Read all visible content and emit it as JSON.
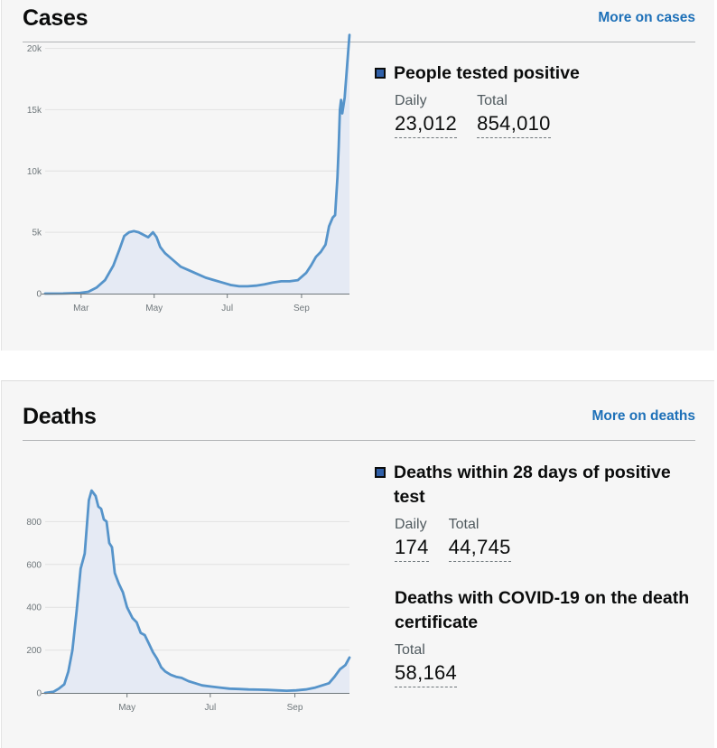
{
  "cases": {
    "title": "Cases",
    "more_link": "More on cases",
    "metric": {
      "label": "People tested positive",
      "daily_label": "Daily",
      "daily_value": "23,012",
      "total_label": "Total",
      "total_value": "854,010"
    }
  },
  "deaths": {
    "title": "Deaths",
    "more_link": "More on deaths",
    "metric1": {
      "label": "Deaths within 28 days of positive test",
      "daily_label": "Daily",
      "daily_value": "174",
      "total_label": "Total",
      "total_value": "44,745"
    },
    "metric2": {
      "label": "Deaths with COVID-19 on the death certificate",
      "total_label": "Total",
      "total_value": "58,164"
    }
  },
  "colors": {
    "line": "#5694ca",
    "fill": "#e5eaf4",
    "accent": "#1d70b8"
  },
  "chart_data": [
    {
      "type": "area",
      "title": "",
      "xlabel": "",
      "ylabel": "",
      "x_ticks": [
        "Mar",
        "May",
        "Jul",
        "Sep"
      ],
      "y_ticks": [
        "0",
        "5k",
        "10k",
        "15k",
        "20k"
      ],
      "ylim": [
        0,
        21000
      ],
      "xlim": [
        "2020-01-31",
        "2020-10-11"
      ],
      "grid": true,
      "series": [
        {
          "x": [
            "2020-01-31",
            "2020-02-15",
            "2020-02-29",
            "2020-03-07",
            "2020-03-14",
            "2020-03-21",
            "2020-03-28",
            "2020-04-02",
            "2020-04-06",
            "2020-04-10",
            "2020-04-14",
            "2020-04-18",
            "2020-04-22",
            "2020-04-26",
            "2020-04-30",
            "2020-05-03",
            "2020-05-06",
            "2020-05-10",
            "2020-05-16",
            "2020-05-23",
            "2020-05-30",
            "2020-06-06",
            "2020-06-13",
            "2020-06-20",
            "2020-06-27",
            "2020-07-04",
            "2020-07-11",
            "2020-07-18",
            "2020-07-25",
            "2020-08-01",
            "2020-08-08",
            "2020-08-15",
            "2020-08-22",
            "2020-08-29",
            "2020-09-05",
            "2020-09-09",
            "2020-09-13",
            "2020-09-17",
            "2020-09-21",
            "2020-09-24",
            "2020-09-27",
            "2020-09-29",
            "2020-10-01",
            "2020-10-02",
            "2020-10-03",
            "2020-10-04",
            "2020-10-05",
            "2020-10-07",
            "2020-10-09",
            "2020-10-11"
          ],
          "values": [
            0,
            10,
            50,
            150,
            500,
            1100,
            2300,
            3600,
            4700,
            5000,
            5100,
            5000,
            4800,
            4600,
            5000,
            4600,
            3800,
            3300,
            2800,
            2200,
            1900,
            1600,
            1300,
            1100,
            900,
            700,
            600,
            600,
            650,
            750,
            900,
            1000,
            1000,
            1100,
            1700,
            2300,
            3000,
            3400,
            4000,
            5500,
            6200,
            6400,
            9500,
            12000,
            15000,
            15800,
            14700,
            16000,
            18500,
            21100
          ]
        }
      ]
    },
    {
      "type": "area",
      "title": "",
      "xlabel": "",
      "ylabel": "",
      "x_ticks": [
        "May",
        "Jul",
        "Sep"
      ],
      "y_ticks": [
        "0",
        "200",
        "400",
        "600",
        "800"
      ],
      "ylim": [
        0,
        1000
      ],
      "xlim": [
        "2020-03-02",
        "2020-10-11"
      ],
      "grid": true,
      "series": [
        {
          "x": [
            "2020-03-02",
            "2020-03-08",
            "2020-03-12",
            "2020-03-16",
            "2020-03-19",
            "2020-03-22",
            "2020-03-25",
            "2020-03-28",
            "2020-03-31",
            "2020-04-03",
            "2020-04-05",
            "2020-04-08",
            "2020-04-10",
            "2020-04-12",
            "2020-04-14",
            "2020-04-16",
            "2020-04-18",
            "2020-04-20",
            "2020-04-22",
            "2020-04-25",
            "2020-04-28",
            "2020-05-01",
            "2020-05-05",
            "2020-05-08",
            "2020-05-11",
            "2020-05-14",
            "2020-05-17",
            "2020-05-20",
            "2020-05-23",
            "2020-05-26",
            "2020-05-29",
            "2020-06-02",
            "2020-06-06",
            "2020-06-10",
            "2020-06-15",
            "2020-06-20",
            "2020-06-25",
            "2020-07-01",
            "2020-07-08",
            "2020-07-15",
            "2020-07-22",
            "2020-07-29",
            "2020-08-05",
            "2020-08-12",
            "2020-08-19",
            "2020-08-26",
            "2020-09-02",
            "2020-09-09",
            "2020-09-16",
            "2020-09-21",
            "2020-09-26",
            "2020-09-30",
            "2020-10-04",
            "2020-10-08",
            "2020-10-11"
          ],
          "values": [
            0,
            5,
            20,
            40,
            100,
            200,
            380,
            580,
            650,
            900,
            945,
            920,
            870,
            860,
            810,
            800,
            700,
            680,
            560,
            510,
            470,
            400,
            350,
            330,
            280,
            270,
            230,
            190,
            160,
            120,
            100,
            85,
            75,
            70,
            55,
            45,
            35,
            30,
            25,
            20,
            18,
            16,
            15,
            14,
            12,
            10,
            12,
            16,
            25,
            35,
            45,
            75,
            110,
            130,
            165
          ]
        }
      ]
    }
  ]
}
